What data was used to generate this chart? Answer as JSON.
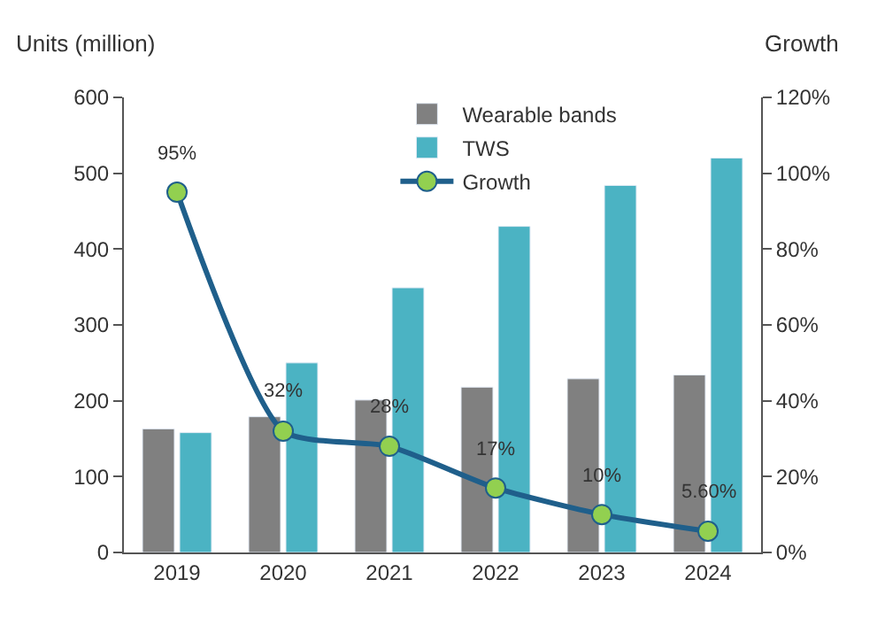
{
  "chart_data": {
    "type": "bar",
    "ylabel": "Units (million)",
    "y2label": "Growth",
    "categories": [
      "2019",
      "2020",
      "2021",
      "2022",
      "2023",
      "2024"
    ],
    "series": [
      {
        "name": "Wearable bands",
        "color": "#808080",
        "values": [
          163,
          179,
          201,
          218,
          229,
          234
        ]
      },
      {
        "name": "TWS",
        "color": "#4bb3c3",
        "values": [
          158,
          250,
          349,
          430,
          484,
          520
        ]
      },
      {
        "name": "Growth",
        "type": "line",
        "axis": "y2",
        "color": "#1f5f8b",
        "marker": "circle",
        "values": [
          95,
          32,
          28,
          17,
          10,
          5.6
        ],
        "value_labels": [
          "95%",
          "32%",
          "28%",
          "17%",
          "10%",
          "5.60%"
        ]
      }
    ],
    "ylim": [
      0,
      600
    ],
    "yticks": [
      0,
      100,
      200,
      300,
      400,
      500,
      600
    ],
    "y2lim": [
      0,
      120
    ],
    "y2ticks": [
      {
        "value": 0,
        "label": "0%"
      },
      {
        "value": 20,
        "label": "20%"
      },
      {
        "value": 40,
        "label": "40%"
      },
      {
        "value": 60,
        "label": "60%"
      },
      {
        "value": 80,
        "label": "80%"
      },
      {
        "value": 100,
        "label": "100%"
      },
      {
        "value": 120,
        "label": "120%"
      }
    ],
    "legend": "top"
  }
}
